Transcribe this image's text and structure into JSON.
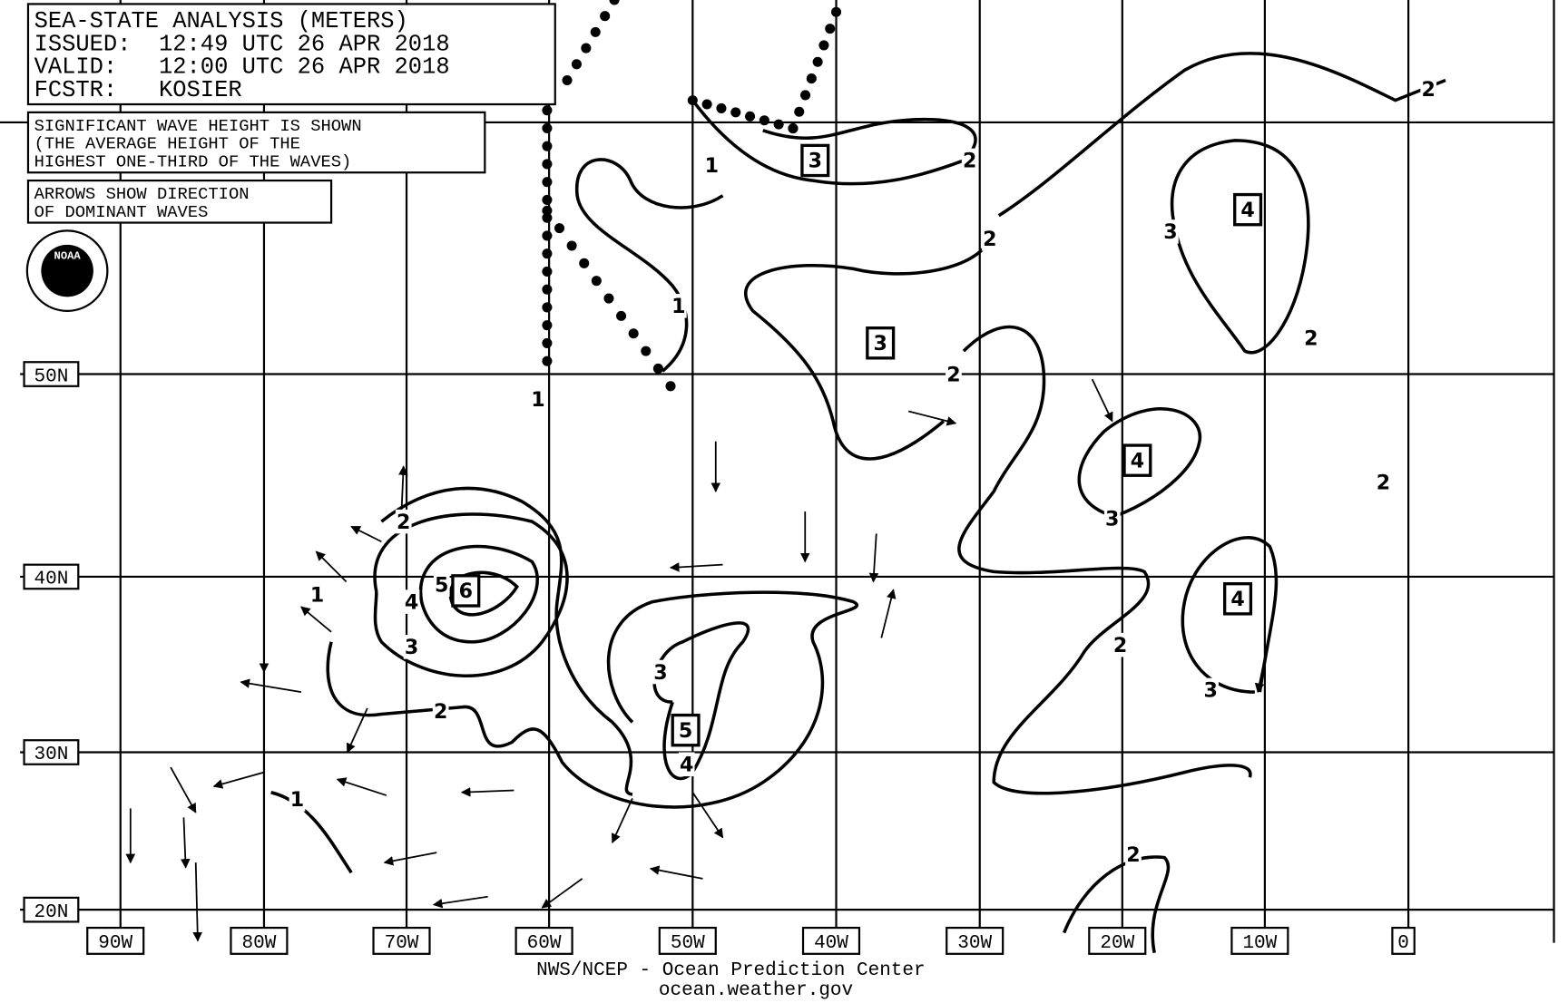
{
  "header": {
    "title": "SEA-STATE ANALYSIS (METERS)",
    "issued": "ISSUED:  12:49 UTC 26 APR 2018",
    "valid": "VALID:   12:00 UTC 26 APR 2018",
    "forecaster": "FCSTR:   KOSIER"
  },
  "notes": [
    "SIGNIFICANT WAVE HEIGHT IS SHOWN",
    "(THE AVERAGE HEIGHT OF THE",
    "HIGHEST ONE-THIRD OF THE WAVES)"
  ],
  "arrow_note": [
    "ARROWS SHOW DIRECTION",
    "OF DOMINANT WAVES"
  ],
  "logo": "NOAA",
  "longitude_labels": [
    "90W",
    "80W",
    "70W",
    "60W",
    "50W",
    "40W",
    "30W",
    "20W",
    "10W",
    "0"
  ],
  "latitude_labels": [
    "50N",
    "40N",
    "30N",
    "20N"
  ],
  "contour_labels": [
    "1",
    "1",
    "1",
    "2",
    "2",
    "2",
    "2",
    "1",
    "4",
    "5",
    "3",
    "2",
    "3",
    "4",
    "1",
    "3",
    "2",
    "2",
    "2",
    "3",
    "2",
    "3",
    "2"
  ],
  "boxed_labels": [
    "3",
    "4",
    "3",
    "4",
    "6",
    "5",
    "4"
  ],
  "footer": {
    "agency": "NWS/NCEP - Ocean Prediction Center",
    "url": "ocean.weather.gov"
  }
}
